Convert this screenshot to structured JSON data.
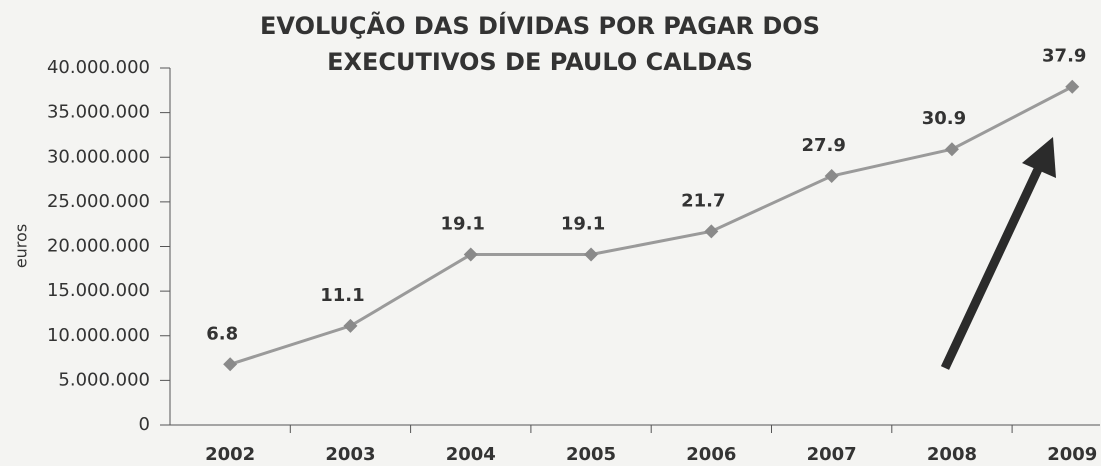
{
  "chart_data": {
    "type": "line",
    "title": "EVOLUÇÃO DAS DÍVIDAS POR PAGAR DOS EXECUTIVOS DE PAULO CALDAS",
    "y_label": "euros",
    "categories": [
      "2002",
      "2003",
      "2004",
      "2005",
      "2006",
      "2007",
      "2008",
      "2009"
    ],
    "series": [
      {
        "color": "#9a9a9a",
        "values": [
          6800000,
          11100000,
          19100000,
          19100000,
          21700000,
          27900000,
          30900000,
          37900000
        ],
        "value_labels": [
          "6.8",
          "11.1",
          "19.1",
          "19.1",
          "21.7",
          "27.9",
          "30.9",
          "37.9"
        ]
      }
    ],
    "ylim": [
      0,
      40000000
    ],
    "yticks": [
      0,
      {
        "value": 5000000,
        "label": "5.000.000"
      },
      {
        "value": 10000000,
        "label": "10.000.000"
      },
      {
        "value": 15000000,
        "label": "15.000.000"
      },
      {
        "value": 20000000,
        "label": "20.000.000"
      },
      {
        "value": 25000000,
        "label": "25.000.000"
      },
      {
        "value": 30000000,
        "label": "30.000.000"
      },
      {
        "value": 35000000,
        "label": "35.000.000"
      },
      {
        "value": 40000000,
        "label": "40.000.000"
      }
    ]
  }
}
